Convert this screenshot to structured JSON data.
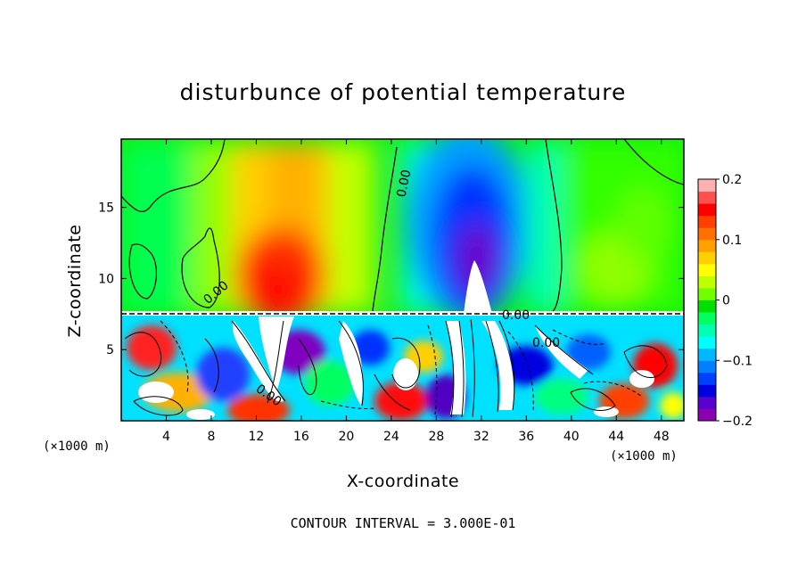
{
  "chart_data": {
    "type": "heatmap",
    "title": "disturbunce of potential temperature",
    "xlabel": "X-coordinate",
    "ylabel": "Z-coordinate",
    "x_unit_left": "(×1000 m)",
    "x_unit_right": "(×1000 m)",
    "xlim": [
      0,
      50
    ],
    "ylim": [
      0,
      19.8
    ],
    "x_ticks": [
      4,
      8,
      12,
      16,
      20,
      24,
      28,
      32,
      36,
      40,
      44,
      48
    ],
    "y_ticks": [
      5,
      10,
      15
    ],
    "colorbar": {
      "range": [
        -0.2,
        0.2
      ],
      "ticks": [
        "0.2",
        "0.1",
        "0",
        "−0.1",
        "−0.2"
      ],
      "tick_values": [
        0.2,
        0.1,
        0,
        -0.1,
        -0.2
      ],
      "colors": [
        "#8b00b0",
        "#5a00d0",
        "#0000e0",
        "#0040ff",
        "#0080ff",
        "#00b8ff",
        "#00ffff",
        "#00ffb0",
        "#00ff60",
        "#00e000",
        "#70ff00",
        "#c0ff00",
        "#ffff00",
        "#ffd000",
        "#ffa000",
        "#ff7000",
        "#ff4000",
        "#ff0000",
        "#ff5050",
        "#ffb0b0"
      ]
    },
    "contour_labels": [
      "0.00",
      "0.00",
      "0.00",
      "0.00",
      "0.00"
    ],
    "contour_interval_text": "CONTOUR INTERVAL = 3.000E-01",
    "features": [
      {
        "x": 14,
        "z": 11,
        "value": 0.16
      },
      {
        "x": 18,
        "z": 15,
        "value": 0.09
      },
      {
        "x": 31.5,
        "z": 12,
        "value": -0.19
      },
      {
        "x": 31,
        "z": 15,
        "value": -0.12
      },
      {
        "x": 44,
        "z": 12,
        "value": 0.04
      },
      {
        "x": 40,
        "z": 16,
        "value": 0.02
      },
      {
        "x": 5,
        "z": 13,
        "value": 0.02
      }
    ]
  }
}
